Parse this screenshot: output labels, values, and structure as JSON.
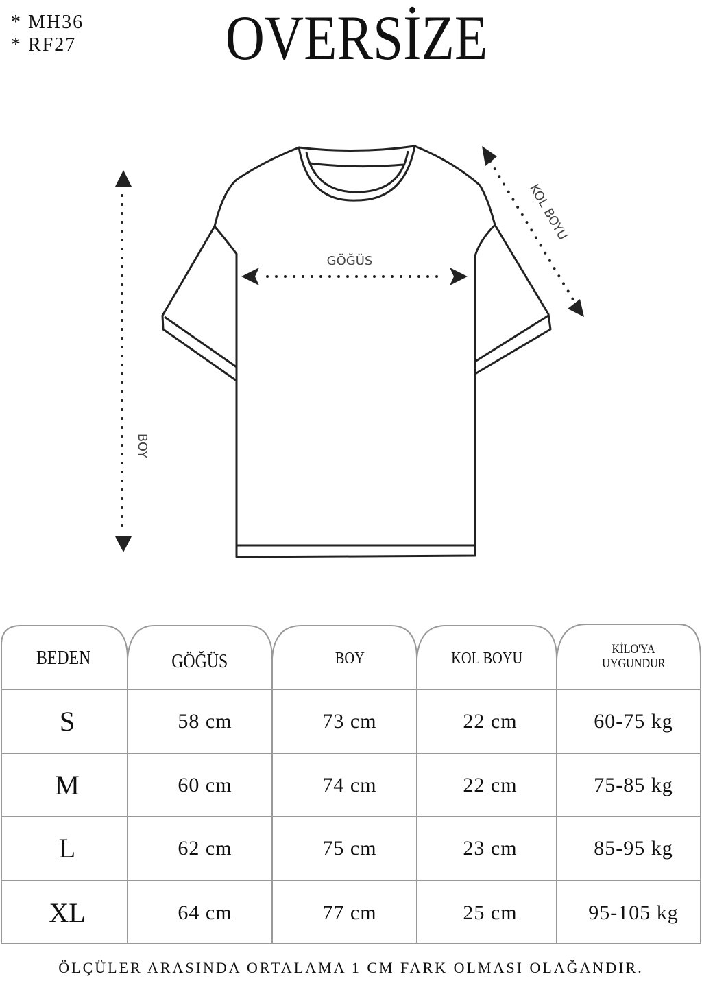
{
  "codes": [
    "* MH36",
    "* RF27"
  ],
  "title": "OVERSİZE",
  "diagram": {
    "chest_label": "GÖĞÜS",
    "length_label": "BOY",
    "sleeve_label": "KOL BOYU"
  },
  "table": {
    "headers": [
      "BEDEN",
      "GÖĞÜS",
      "BOY",
      "KOL BOYU",
      "KİLO'YA UYGUNDUR"
    ],
    "header_kilo_lines": [
      "KİLO'YA",
      "UYGUNDUR"
    ],
    "rows": [
      [
        "S",
        "58 cm",
        "73 cm",
        "22  cm",
        "60-75 kg"
      ],
      [
        "M",
        "60 cm",
        "74 cm",
        "22 cm",
        "75-85 kg"
      ],
      [
        "L",
        "62 cm",
        "75 cm",
        "23 cm",
        "85-95 kg"
      ],
      [
        "XL",
        "64 cm",
        "77 cm",
        "25 cm",
        "95-105 kg"
      ]
    ]
  },
  "footer": "ÖLÇÜLER ARASINDA ORTALAMA 1 CM FARK OLMASI OLAĞANDIR."
}
